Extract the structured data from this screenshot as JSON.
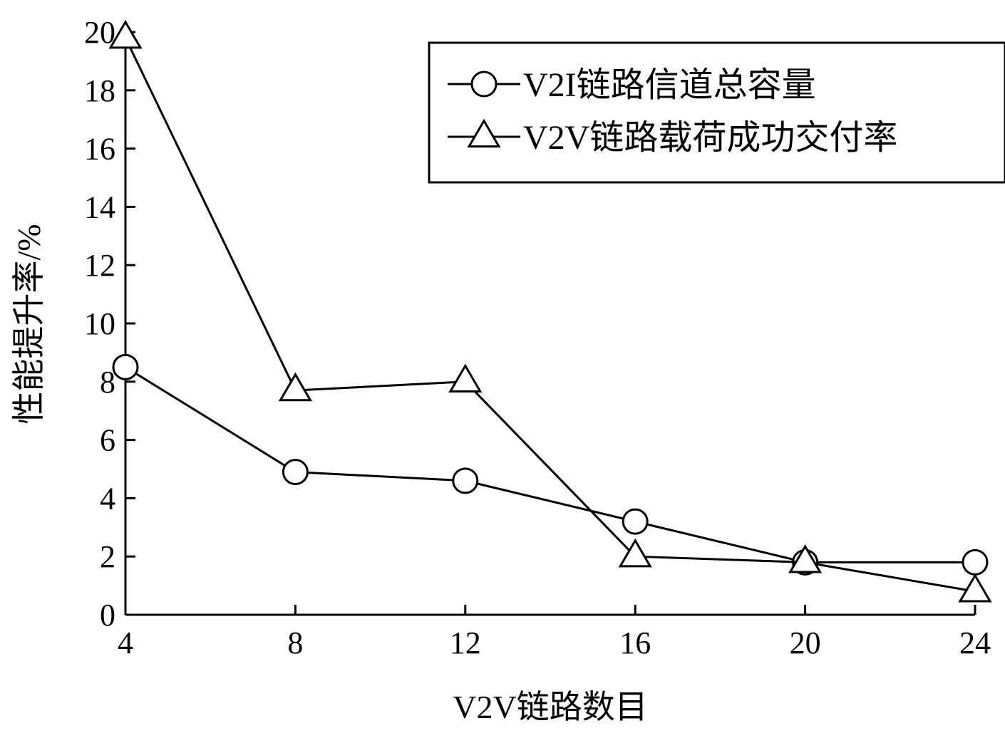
{
  "chart_data": {
    "type": "line",
    "xlabel": "V2V链路数目",
    "ylabel": "性能提升率/%",
    "x": [
      4,
      8,
      12,
      16,
      20,
      24
    ],
    "xticks": [
      "4",
      "8",
      "12",
      "16",
      "20",
      "24"
    ],
    "yticks": [
      "0",
      "2",
      "4",
      "6",
      "8",
      "10",
      "12",
      "14",
      "16",
      "18",
      "20"
    ],
    "xlim": [
      4,
      24
    ],
    "ylim": [
      0,
      20
    ],
    "grid": false,
    "legend_position": "top-right",
    "series": [
      {
        "name": "V2I链路信道总容量",
        "marker": "circle",
        "color": "#000000",
        "values": [
          8.5,
          4.9,
          4.6,
          3.2,
          1.8,
          1.8
        ]
      },
      {
        "name": "V2V链路载荷成功交付率",
        "marker": "triangle",
        "color": "#000000",
        "values": [
          19.8,
          7.7,
          8.0,
          2.0,
          1.8,
          0.8
        ]
      }
    ]
  }
}
